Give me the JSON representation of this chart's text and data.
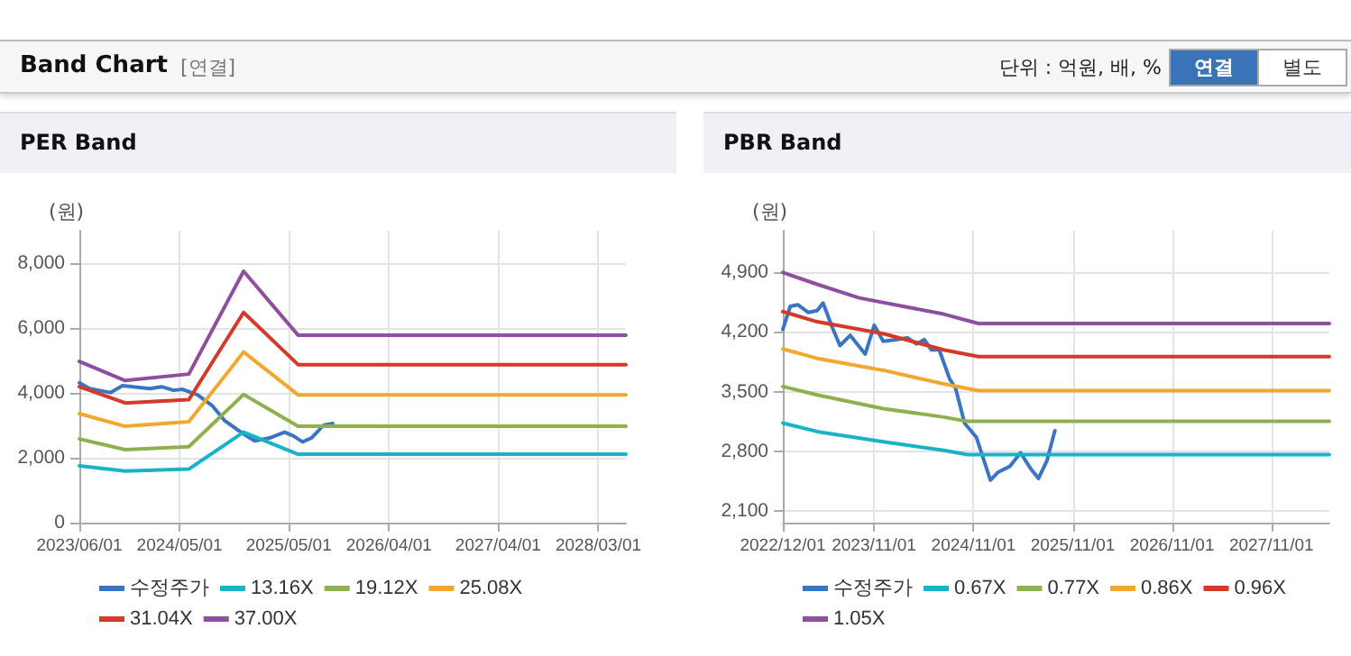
{
  "chart_data": [
    {
      "type": "line",
      "title": "PER Band",
      "ylabel": "(원)",
      "annotations": [
        "Band Chart",
        "[연결]",
        "단위 : 억원, 배, %",
        "연결",
        "별도"
      ],
      "xlim": [
        "2023-06-01",
        "2028-06-01"
      ],
      "xticks": [
        {
          "value": "2023-06-01",
          "label": "2023/06/01"
        },
        {
          "value": "2024-05-01",
          "label": "2024/05/01"
        },
        {
          "value": "2025-05-01",
          "label": "2025/05/01"
        },
        {
          "value": "2026-04-01",
          "label": "2026/04/01"
        },
        {
          "value": "2027-04-01",
          "label": "2027/04/01"
        },
        {
          "value": "2028-03-01",
          "label": "2028/03/01"
        }
      ],
      "ylim": [
        0,
        9000
      ],
      "yticks": [
        {
          "value": 0,
          "label": "0"
        },
        {
          "value": 2000,
          "label": "2,000"
        },
        {
          "value": 4000,
          "label": "4,000"
        },
        {
          "value": 6000,
          "label": "6,000"
        },
        {
          "value": 8000,
          "label": "8,000"
        }
      ],
      "grid": true,
      "legend": "bottom",
      "marker": "none",
      "line_style": "solid",
      "series": [
        {
          "name": "수정주가",
          "color": "#3a75c4",
          "x": [
            "2023-06-01",
            "2023-07-05",
            "2023-09-13",
            "2023-10-23",
            "2024-01-22",
            "2024-03-02",
            "2024-04-11",
            "2024-05-11",
            "2024-06-30",
            "2024-08-19",
            "2024-09-28",
            "2024-11-28",
            "2025-01-07",
            "2025-02-26",
            "2025-04-17",
            "2025-05-17",
            "2025-06-16",
            "2025-07-16",
            "2025-08-25",
            "2025-09-25"
          ],
          "values": [
            4310,
            4130,
            4010,
            4220,
            4130,
            4190,
            4080,
            4110,
            3940,
            3600,
            3150,
            2750,
            2520,
            2610,
            2790,
            2670,
            2490,
            2610,
            3000,
            3060
          ]
        },
        {
          "name": "13.16X",
          "color": "#17b4c8",
          "x": [
            "2023-06-01",
            "2023-11-01",
            "2024-06-01",
            "2024-12-01",
            "2025-06-01",
            "2028-06-01"
          ],
          "values": [
            1750,
            1590,
            1650,
            2790,
            2110,
            2110
          ]
        },
        {
          "name": "19.12X",
          "color": "#8fb04f",
          "x": [
            "2023-06-01",
            "2023-11-01",
            "2024-06-01",
            "2024-12-01",
            "2025-06-01",
            "2028-06-01"
          ],
          "values": [
            2580,
            2250,
            2340,
            3950,
            2970,
            2970
          ]
        },
        {
          "name": "25.08X",
          "color": "#f0a830",
          "x": [
            "2023-06-01",
            "2023-11-01",
            "2024-06-01",
            "2024-12-01",
            "2025-06-01",
            "2028-06-01"
          ],
          "values": [
            3360,
            2970,
            3110,
            5260,
            3940,
            3940
          ]
        },
        {
          "name": "31.04X",
          "color": "#d43a2a",
          "x": [
            "2023-06-01",
            "2023-11-01",
            "2024-06-01",
            "2024-12-01",
            "2025-06-01",
            "2028-06-01"
          ],
          "values": [
            4190,
            3690,
            3790,
            6480,
            4870,
            4870
          ]
        },
        {
          "name": "37.00X",
          "color": "#8e4f9e",
          "x": [
            "2023-06-01",
            "2023-11-01",
            "2024-06-01",
            "2024-12-01",
            "2025-06-01",
            "2028-06-01"
          ],
          "values": [
            4970,
            4380,
            4580,
            7750,
            5780,
            5780
          ]
        }
      ]
    },
    {
      "type": "line",
      "title": "PBR Band",
      "ylabel": "(원)",
      "xlim": [
        "2022-12-01",
        "2028-06-01"
      ],
      "xticks": [
        {
          "value": "2022-12-01",
          "label": "2022/12/01"
        },
        {
          "value": "2023-11-01",
          "label": "2023/11/01"
        },
        {
          "value": "2024-11-01",
          "label": "2024/11/01"
        },
        {
          "value": "2025-11-01",
          "label": "2025/11/01"
        },
        {
          "value": "2026-11-01",
          "label": "2026/11/01"
        },
        {
          "value": "2027-11-01",
          "label": "2027/11/01"
        }
      ],
      "ylim": [
        1960,
        5390
      ],
      "yticks": [
        {
          "value": 2100,
          "label": "2,100"
        },
        {
          "value": 2800,
          "label": "2,800"
        },
        {
          "value": 3500,
          "label": "3,500"
        },
        {
          "value": 4200,
          "label": "4,200"
        },
        {
          "value": 4900,
          "label": "4,900"
        }
      ],
      "grid": true,
      "legend": "bottom",
      "marker": "none",
      "line_style": "solid",
      "series": [
        {
          "name": "수정주가",
          "color": "#3a75c4",
          "x": [
            "2022-12-01",
            "2022-12-28",
            "2023-01-25",
            "2023-03-04",
            "2023-04-06",
            "2023-04-28",
            "2023-05-31",
            "2023-06-29",
            "2023-08-06",
            "2023-09-30",
            "2023-11-02",
            "2023-12-05",
            "2024-01-19",
            "2024-03-03",
            "2024-04-05",
            "2024-05-04",
            "2024-05-30",
            "2024-06-28",
            "2024-08-05",
            "2024-08-27",
            "2024-09-29",
            "2024-11-12",
            "2025-01-02",
            "2025-01-29",
            "2025-03-14",
            "2025-04-23",
            "2025-05-31",
            "2025-06-28",
            "2025-07-29",
            "2025-08-27"
          ],
          "values": [
            4230,
            4500,
            4520,
            4430,
            4450,
            4540,
            4260,
            4040,
            4160,
            3940,
            4280,
            4090,
            4110,
            4130,
            4060,
            4110,
            3990,
            3990,
            3650,
            3540,
            3130,
            2960,
            2460,
            2550,
            2620,
            2780,
            2590,
            2480,
            2690,
            3040
          ]
        },
        {
          "name": "0.67X",
          "color": "#17b4c8",
          "x": [
            "2022-12-01",
            "2023-04-06",
            "2023-12-05",
            "2024-07-14",
            "2024-10-10",
            "2028-06-01"
          ],
          "values": [
            3130,
            3030,
            2910,
            2810,
            2760,
            2760
          ]
        },
        {
          "name": "0.77X",
          "color": "#8fb04f",
          "x": [
            "2022-12-01",
            "2023-04-06",
            "2023-12-05",
            "2024-07-14",
            "2024-10-10",
            "2028-06-01"
          ],
          "values": [
            3560,
            3460,
            3300,
            3200,
            3150,
            3150
          ]
        },
        {
          "name": "0.86X",
          "color": "#f0a830",
          "x": [
            "2022-12-01",
            "2023-04-06",
            "2023-12-05",
            "2024-07-14",
            "2024-11-19",
            "2028-06-01"
          ],
          "values": [
            4000,
            3890,
            3750,
            3590,
            3510,
            3510
          ]
        },
        {
          "name": "0.96X",
          "color": "#d43a2a",
          "x": [
            "2022-12-01",
            "2023-04-06",
            "2023-12-05",
            "2024-07-14",
            "2024-11-19",
            "2028-06-01"
          ],
          "values": [
            4440,
            4320,
            4180,
            3990,
            3910,
            3910
          ]
        },
        {
          "name": "1.05X",
          "color": "#8e4f9e",
          "x": [
            "2022-12-01",
            "2023-04-06",
            "2023-09-08",
            "2024-07-14",
            "2024-11-19",
            "2028-06-01"
          ],
          "values": [
            4900,
            4760,
            4600,
            4410,
            4300,
            4300
          ]
        }
      ]
    }
  ]
}
